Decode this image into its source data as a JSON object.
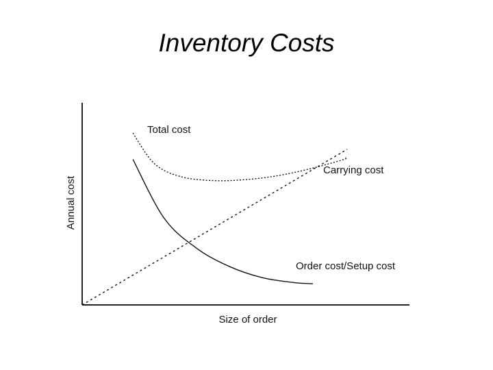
{
  "slide": {
    "title": "Inventory Costs"
  },
  "chart_data": {
    "type": "line",
    "title": "",
    "xlabel": "Size of order",
    "ylabel": "Annual cost",
    "xlim": [
      0,
      10
    ],
    "ylim": [
      0,
      10
    ],
    "grid": false,
    "series": [
      {
        "name": "Total cost",
        "style": "dotted",
        "x": [
          1.55,
          2.2,
          3.0,
          4.0,
          5.0,
          6.0,
          7.0,
          8.0,
          8.05
        ],
        "y": [
          8.5,
          7.0,
          6.35,
          6.15,
          6.2,
          6.4,
          6.75,
          7.2,
          7.3
        ]
      },
      {
        "name": "Carrying cost",
        "style": "dashed",
        "x": [
          0,
          8.1
        ],
        "y": [
          0,
          7.7
        ]
      },
      {
        "name": "Order cost/Setup cost",
        "style": "solid",
        "x": [
          1.55,
          2.5,
          3.5,
          4.5,
          5.5,
          6.5,
          7.05
        ],
        "y": [
          7.2,
          4.3,
          2.8,
          1.9,
          1.35,
          1.1,
          1.05
        ]
      }
    ]
  }
}
